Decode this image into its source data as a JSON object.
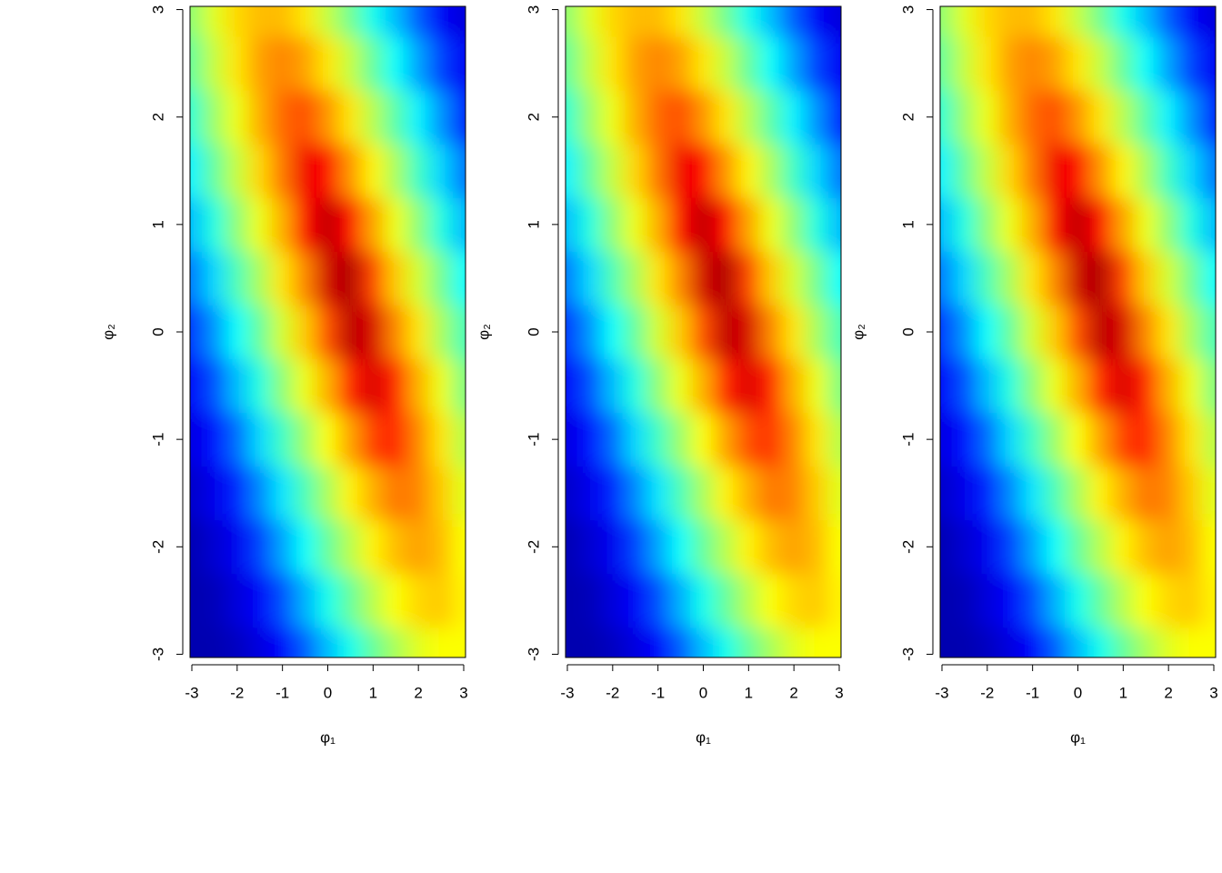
{
  "chart_data": [
    {
      "type": "heatmap",
      "xlabel": "φ₁",
      "ylabel": "φ₂",
      "xlim": [
        -3.04,
        3.04
      ],
      "ylim": [
        -3.03,
        3.03
      ],
      "xticks": [
        -3,
        -2,
        -1,
        0,
        1,
        2,
        3
      ],
      "yticks": [
        -3,
        -2,
        -1,
        0,
        1,
        2,
        3
      ],
      "colors": [
        "#0000b0",
        "#0000ff",
        "#00ffff",
        "#ffff00",
        "#ff0000",
        "#b00000"
      ],
      "x": [
        -3,
        -2.5,
        -2,
        -1.5,
        -1,
        -0.5,
        0,
        0.5,
        1,
        1.5,
        2,
        2.5,
        3
      ],
      "y": [
        -3,
        -2.5,
        -2,
        -1.5,
        -1,
        -0.5,
        0,
        0.5,
        1,
        1.5,
        2,
        2.5,
        3
      ],
      "z": [
        [
          0,
          0,
          0.04,
          0.11,
          0.18,
          0.25,
          0.32,
          0.38,
          0.44,
          0.49,
          0.53,
          0.55,
          0.55
        ],
        [
          0,
          0.02,
          0.1,
          0.17,
          0.24,
          0.31,
          0.38,
          0.44,
          0.5,
          0.55,
          0.58,
          0.59,
          0.56
        ],
        [
          0.01,
          0.08,
          0.15,
          0.23,
          0.3,
          0.37,
          0.44,
          0.5,
          0.56,
          0.6,
          0.62,
          0.6,
          0.55
        ],
        [
          0.06,
          0.14,
          0.21,
          0.28,
          0.35,
          0.42,
          0.49,
          0.56,
          0.61,
          0.65,
          0.64,
          0.59,
          0.53
        ],
        [
          0.12,
          0.19,
          0.26,
          0.34,
          0.41,
          0.48,
          0.55,
          0.62,
          0.69,
          0.71,
          0.64,
          0.57,
          0.5
        ],
        [
          0.17,
          0.24,
          0.32,
          0.39,
          0.47,
          0.54,
          0.61,
          0.71,
          0.82,
          0.71,
          0.61,
          0.54,
          0.46
        ],
        [
          0.22,
          0.29,
          0.37,
          0.44,
          0.52,
          0.59,
          0.68,
          0.89,
          0.83,
          0.64,
          0.57,
          0.49,
          0.42
        ],
        [
          0.27,
          0.34,
          0.42,
          0.49,
          0.57,
          0.64,
          0.84,
          0.92,
          0.69,
          0.59,
          0.52,
          0.45,
          0.37
        ],
        [
          0.32,
          0.39,
          0.47,
          0.54,
          0.61,
          0.74,
          0.88,
          0.74,
          0.62,
          0.54,
          0.47,
          0.39,
          0.32
        ],
        [
          0.36,
          0.44,
          0.51,
          0.58,
          0.65,
          0.77,
          0.74,
          0.63,
          0.56,
          0.49,
          0.41,
          0.34,
          0.27
        ],
        [
          0.4,
          0.48,
          0.54,
          0.61,
          0.66,
          0.68,
          0.63,
          0.57,
          0.5,
          0.43,
          0.36,
          0.29,
          0.21
        ],
        [
          0.44,
          0.51,
          0.57,
          0.62,
          0.64,
          0.62,
          0.57,
          0.51,
          0.44,
          0.37,
          0.3,
          0.23,
          0.16
        ],
        [
          0.47,
          0.53,
          0.58,
          0.6,
          0.6,
          0.57,
          0.51,
          0.45,
          0.38,
          0.32,
          0.25,
          0.17,
          0.1
        ]
      ]
    },
    {
      "type": "heatmap",
      "xlabel": "φ₁",
      "ylabel": "φ₂",
      "xlim": [
        -3.04,
        3.04
      ],
      "ylim": [
        -3.03,
        3.03
      ],
      "xticks": [
        -3,
        -2,
        -1,
        0,
        1,
        2,
        3
      ],
      "yticks": [
        -3,
        -2,
        -1,
        0,
        1,
        2,
        3
      ],
      "colors": [
        "#0000b0",
        "#0000ff",
        "#00ffff",
        "#ffff00",
        "#ff0000",
        "#b00000"
      ],
      "x": [
        -3,
        -2.5,
        -2,
        -1.5,
        -1,
        -0.5,
        0,
        0.5,
        1,
        1.5,
        2,
        2.5,
        3
      ],
      "y": [
        -3,
        -2.5,
        -2,
        -1.5,
        -1,
        -0.5,
        0,
        0.5,
        1,
        1.5,
        2,
        2.5,
        3
      ],
      "z": [
        [
          0,
          0,
          0.04,
          0.11,
          0.18,
          0.25,
          0.32,
          0.38,
          0.44,
          0.49,
          0.53,
          0.55,
          0.55
        ],
        [
          0,
          0.02,
          0.1,
          0.17,
          0.24,
          0.31,
          0.38,
          0.44,
          0.5,
          0.55,
          0.58,
          0.59,
          0.56
        ],
        [
          0.01,
          0.08,
          0.15,
          0.23,
          0.3,
          0.37,
          0.44,
          0.5,
          0.56,
          0.6,
          0.62,
          0.6,
          0.55
        ],
        [
          0.06,
          0.14,
          0.21,
          0.28,
          0.35,
          0.42,
          0.49,
          0.56,
          0.61,
          0.65,
          0.64,
          0.59,
          0.53
        ],
        [
          0.12,
          0.19,
          0.26,
          0.34,
          0.41,
          0.48,
          0.55,
          0.62,
          0.68,
          0.7,
          0.64,
          0.57,
          0.5
        ],
        [
          0.17,
          0.24,
          0.32,
          0.39,
          0.47,
          0.54,
          0.61,
          0.71,
          0.81,
          0.71,
          0.61,
          0.54,
          0.46
        ],
        [
          0.22,
          0.29,
          0.37,
          0.44,
          0.52,
          0.59,
          0.68,
          0.88,
          0.83,
          0.64,
          0.57,
          0.49,
          0.42
        ],
        [
          0.27,
          0.34,
          0.42,
          0.49,
          0.57,
          0.64,
          0.84,
          0.92,
          0.69,
          0.59,
          0.52,
          0.45,
          0.37
        ],
        [
          0.32,
          0.39,
          0.47,
          0.54,
          0.61,
          0.74,
          0.88,
          0.74,
          0.62,
          0.54,
          0.47,
          0.39,
          0.32
        ],
        [
          0.36,
          0.44,
          0.51,
          0.58,
          0.65,
          0.77,
          0.74,
          0.63,
          0.56,
          0.49,
          0.41,
          0.34,
          0.27
        ],
        [
          0.4,
          0.48,
          0.54,
          0.61,
          0.66,
          0.68,
          0.63,
          0.57,
          0.5,
          0.43,
          0.36,
          0.29,
          0.21
        ],
        [
          0.44,
          0.51,
          0.57,
          0.62,
          0.64,
          0.62,
          0.57,
          0.51,
          0.44,
          0.37,
          0.3,
          0.23,
          0.16
        ],
        [
          0.47,
          0.53,
          0.58,
          0.6,
          0.6,
          0.57,
          0.51,
          0.45,
          0.38,
          0.32,
          0.25,
          0.17,
          0.1
        ]
      ]
    },
    {
      "type": "heatmap",
      "xlabel": "φ₁",
      "ylabel": "φ₂",
      "xlim": [
        -3.04,
        3.04
      ],
      "ylim": [
        -3.03,
        3.03
      ],
      "xticks": [
        -3,
        -2,
        -1,
        0,
        1,
        2,
        3
      ],
      "yticks": [
        -3,
        -2,
        -1,
        0,
        1,
        2,
        3
      ],
      "colors": [
        "#0000b0",
        "#0000ff",
        "#00ffff",
        "#ffff00",
        "#ff0000",
        "#b00000"
      ],
      "x": [
        -3,
        -2.5,
        -2,
        -1.5,
        -1,
        -0.5,
        0,
        0.5,
        1,
        1.5,
        2,
        2.5,
        3
      ],
      "y": [
        -3,
        -2.5,
        -2,
        -1.5,
        -1,
        -0.5,
        0,
        0.5,
        1,
        1.5,
        2,
        2.5,
        3
      ],
      "z": [
        [
          0,
          0,
          0.04,
          0.11,
          0.18,
          0.25,
          0.32,
          0.38,
          0.44,
          0.49,
          0.53,
          0.55,
          0.55
        ],
        [
          0,
          0.02,
          0.1,
          0.17,
          0.24,
          0.31,
          0.38,
          0.44,
          0.5,
          0.55,
          0.58,
          0.59,
          0.56
        ],
        [
          0.01,
          0.08,
          0.15,
          0.23,
          0.3,
          0.37,
          0.44,
          0.5,
          0.56,
          0.6,
          0.62,
          0.6,
          0.55
        ],
        [
          0.06,
          0.14,
          0.21,
          0.28,
          0.35,
          0.42,
          0.49,
          0.56,
          0.61,
          0.65,
          0.64,
          0.59,
          0.53
        ],
        [
          0.12,
          0.19,
          0.26,
          0.34,
          0.41,
          0.48,
          0.55,
          0.62,
          0.69,
          0.71,
          0.64,
          0.57,
          0.5
        ],
        [
          0.17,
          0.24,
          0.32,
          0.39,
          0.47,
          0.54,
          0.61,
          0.71,
          0.82,
          0.71,
          0.61,
          0.54,
          0.46
        ],
        [
          0.22,
          0.29,
          0.37,
          0.44,
          0.52,
          0.59,
          0.68,
          0.89,
          0.83,
          0.64,
          0.57,
          0.49,
          0.42
        ],
        [
          0.27,
          0.34,
          0.42,
          0.49,
          0.57,
          0.64,
          0.85,
          0.92,
          0.69,
          0.59,
          0.52,
          0.45,
          0.37
        ],
        [
          0.32,
          0.39,
          0.47,
          0.54,
          0.61,
          0.75,
          0.88,
          0.74,
          0.62,
          0.54,
          0.47,
          0.39,
          0.32
        ],
        [
          0.36,
          0.44,
          0.51,
          0.58,
          0.65,
          0.77,
          0.74,
          0.63,
          0.56,
          0.49,
          0.41,
          0.34,
          0.27
        ],
        [
          0.4,
          0.48,
          0.54,
          0.61,
          0.66,
          0.68,
          0.63,
          0.57,
          0.5,
          0.43,
          0.36,
          0.29,
          0.21
        ],
        [
          0.44,
          0.51,
          0.57,
          0.62,
          0.64,
          0.62,
          0.57,
          0.51,
          0.44,
          0.37,
          0.3,
          0.23,
          0.16
        ],
        [
          0.47,
          0.53,
          0.58,
          0.6,
          0.6,
          0.57,
          0.51,
          0.45,
          0.38,
          0.32,
          0.25,
          0.17,
          0.1
        ]
      ]
    }
  ]
}
